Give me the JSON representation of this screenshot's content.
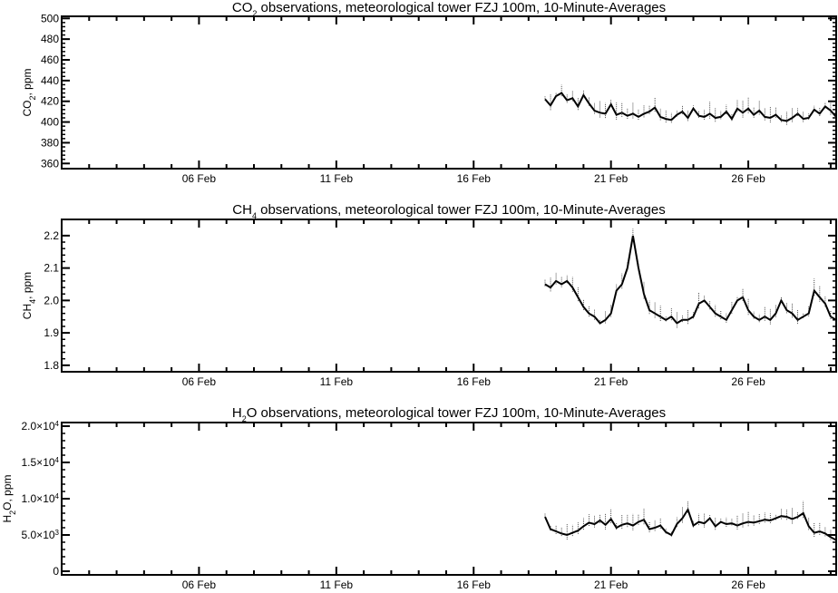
{
  "chart_data": [
    {
      "type": "line",
      "title": "CO2 observations, meteorological tower FZJ 100m, 10-Minute-Averages",
      "title_parts": [
        "CO",
        "2",
        " observations, meteorological tower FZJ 100m, 10-Minute-Averages"
      ],
      "ylabel": "CO2, ppm",
      "ylabel_parts": [
        "CO",
        "2",
        ", ppm"
      ],
      "xlabel": "",
      "xlim": [
        1,
        29.2
      ],
      "ylim": [
        355,
        502
      ],
      "y_ticks": [
        360,
        380,
        400,
        420,
        440,
        460,
        480,
        500
      ],
      "y_tick_labels": [
        "360",
        "380",
        "400",
        "420",
        "440",
        "460",
        "480",
        "500"
      ],
      "x_ticks": [
        6,
        11,
        16,
        21,
        26
      ],
      "x_tick_labels": [
        "06 Feb",
        "11 Feb",
        "16 Feb",
        "21 Feb",
        "26 Feb"
      ],
      "series": [
        {
          "x": [
            18.6,
            18.8,
            19.0,
            19.2,
            19.4,
            19.6,
            19.8,
            20.0,
            20.2,
            20.4,
            20.6,
            20.8,
            21.0,
            21.2,
            21.4,
            21.6,
            21.8,
            22.0,
            22.2,
            22.4,
            22.6,
            22.8,
            23.0,
            23.2,
            23.4,
            23.6,
            23.8,
            24.0,
            24.2,
            24.4,
            24.6,
            24.8,
            25.0,
            25.2,
            25.4,
            25.6,
            25.8,
            26.0,
            26.2,
            26.4,
            26.6,
            26.8,
            27.0,
            27.2,
            27.4,
            27.6,
            27.8,
            28.0,
            28.2,
            28.4,
            28.6,
            28.8,
            29.0,
            29.2
          ],
          "y": [
            422,
            416,
            425,
            428,
            421,
            423,
            415,
            426,
            418,
            411,
            409,
            408,
            417,
            407,
            409,
            406,
            408,
            405,
            408,
            410,
            414,
            405,
            403,
            402,
            407,
            410,
            404,
            413,
            406,
            405,
            408,
            404,
            405,
            410,
            403,
            413,
            409,
            413,
            407,
            411,
            405,
            404,
            407,
            402,
            401,
            404,
            408,
            403,
            404,
            412,
            408,
            415,
            411,
            405
          ]
        }
      ]
    },
    {
      "type": "line",
      "title": "CH4 observations, meteorological tower FZJ 100m, 10-Minute-Averages",
      "title_parts": [
        "CH",
        "4",
        " observations, meteorological tower FZJ 100m, 10-Minute-Averages"
      ],
      "ylabel": "CH4, ppm",
      "ylabel_parts": [
        "CH",
        "4",
        ", ppm"
      ],
      "xlabel": "",
      "xlim": [
        1,
        29.2
      ],
      "ylim": [
        1.78,
        2.25
      ],
      "y_ticks": [
        1.8,
        1.9,
        2.0,
        2.1,
        2.2
      ],
      "y_tick_labels": [
        "1.8",
        "1.9",
        "2.0",
        "2.1",
        "2.2"
      ],
      "x_ticks": [
        6,
        11,
        16,
        21,
        26
      ],
      "x_tick_labels": [
        "06 Feb",
        "11 Feb",
        "16 Feb",
        "21 Feb",
        "26 Feb"
      ],
      "series": [
        {
          "x": [
            18.6,
            18.8,
            19.0,
            19.2,
            19.4,
            19.6,
            19.8,
            20.0,
            20.2,
            20.4,
            20.6,
            20.8,
            21.0,
            21.2,
            21.4,
            21.6,
            21.8,
            22.0,
            22.2,
            22.4,
            22.6,
            22.8,
            23.0,
            23.2,
            23.4,
            23.6,
            23.8,
            24.0,
            24.2,
            24.4,
            24.6,
            24.8,
            25.0,
            25.2,
            25.4,
            25.6,
            25.8,
            26.0,
            26.2,
            26.4,
            26.6,
            26.8,
            27.0,
            27.2,
            27.4,
            27.6,
            27.8,
            28.0,
            28.2,
            28.4,
            28.6,
            28.8,
            29.0,
            29.2
          ],
          "y": [
            2.05,
            2.04,
            2.06,
            2.05,
            2.06,
            2.04,
            2.01,
            1.98,
            1.96,
            1.95,
            1.93,
            1.94,
            1.96,
            2.03,
            2.05,
            2.1,
            2.2,
            2.1,
            2.02,
            1.97,
            1.96,
            1.95,
            1.94,
            1.95,
            1.93,
            1.94,
            1.94,
            1.95,
            1.99,
            2.0,
            1.98,
            1.96,
            1.95,
            1.94,
            1.97,
            2.0,
            2.01,
            1.97,
            1.95,
            1.94,
            1.95,
            1.94,
            1.96,
            2.0,
            1.97,
            1.96,
            1.94,
            1.95,
            1.96,
            2.03,
            2.01,
            1.99,
            1.95,
            1.94
          ]
        }
      ]
    },
    {
      "type": "line",
      "title": "H2O observations, meteorological tower FZJ 100m, 10-Minute-Averages",
      "title_parts": [
        "H",
        "2",
        "O observations, meteorological tower FZJ 100m, 10-Minute-Averages"
      ],
      "ylabel": "H2O, ppm",
      "ylabel_parts": [
        "H",
        "2",
        "O, ppm"
      ],
      "xlabel": "",
      "xlim": [
        1,
        29.2
      ],
      "ylim": [
        -500,
        20500
      ],
      "y_ticks": [
        0,
        5000,
        10000,
        15000,
        20000
      ],
      "y_tick_labels": [
        {
          "mant": "0",
          "exp": ""
        },
        {
          "mant": "5.0×10",
          "exp": "3"
        },
        {
          "mant": "1.0×10",
          "exp": "4"
        },
        {
          "mant": "1.5×10",
          "exp": "4"
        },
        {
          "mant": "2.0×10",
          "exp": "4"
        }
      ],
      "x_ticks": [
        6,
        11,
        16,
        21,
        26
      ],
      "x_tick_labels": [
        "06 Feb",
        "11 Feb",
        "16 Feb",
        "21 Feb",
        "26 Feb"
      ],
      "series": [
        {
          "x": [
            18.6,
            18.8,
            19.0,
            19.2,
            19.4,
            19.6,
            19.8,
            20.0,
            20.2,
            20.4,
            20.6,
            20.8,
            21.0,
            21.2,
            21.4,
            21.6,
            21.8,
            22.0,
            22.2,
            22.4,
            22.6,
            22.8,
            23.0,
            23.2,
            23.4,
            23.6,
            23.8,
            24.0,
            24.2,
            24.4,
            24.6,
            24.8,
            25.0,
            25.2,
            25.4,
            25.6,
            25.8,
            26.0,
            26.2,
            26.4,
            26.6,
            26.8,
            27.0,
            27.2,
            27.4,
            27.6,
            27.8,
            28.0,
            28.2,
            28.4,
            28.6,
            28.8,
            29.0,
            29.2
          ],
          "y": [
            7500,
            5800,
            5500,
            5200,
            5000,
            5300,
            5600,
            6200,
            6700,
            6500,
            7000,
            6400,
            7200,
            6000,
            6400,
            6600,
            6300,
            6800,
            7100,
            5800,
            6000,
            6300,
            5400,
            5000,
            6500,
            7300,
            8500,
            6300,
            6800,
            6600,
            7300,
            6200,
            6800,
            6500,
            6600,
            6300,
            6600,
            6800,
            6700,
            6900,
            7100,
            7000,
            7300,
            7600,
            7500,
            7200,
            7500,
            8000,
            6200,
            5300,
            5500,
            5200,
            4700,
            4300
          ]
        }
      ]
    }
  ]
}
